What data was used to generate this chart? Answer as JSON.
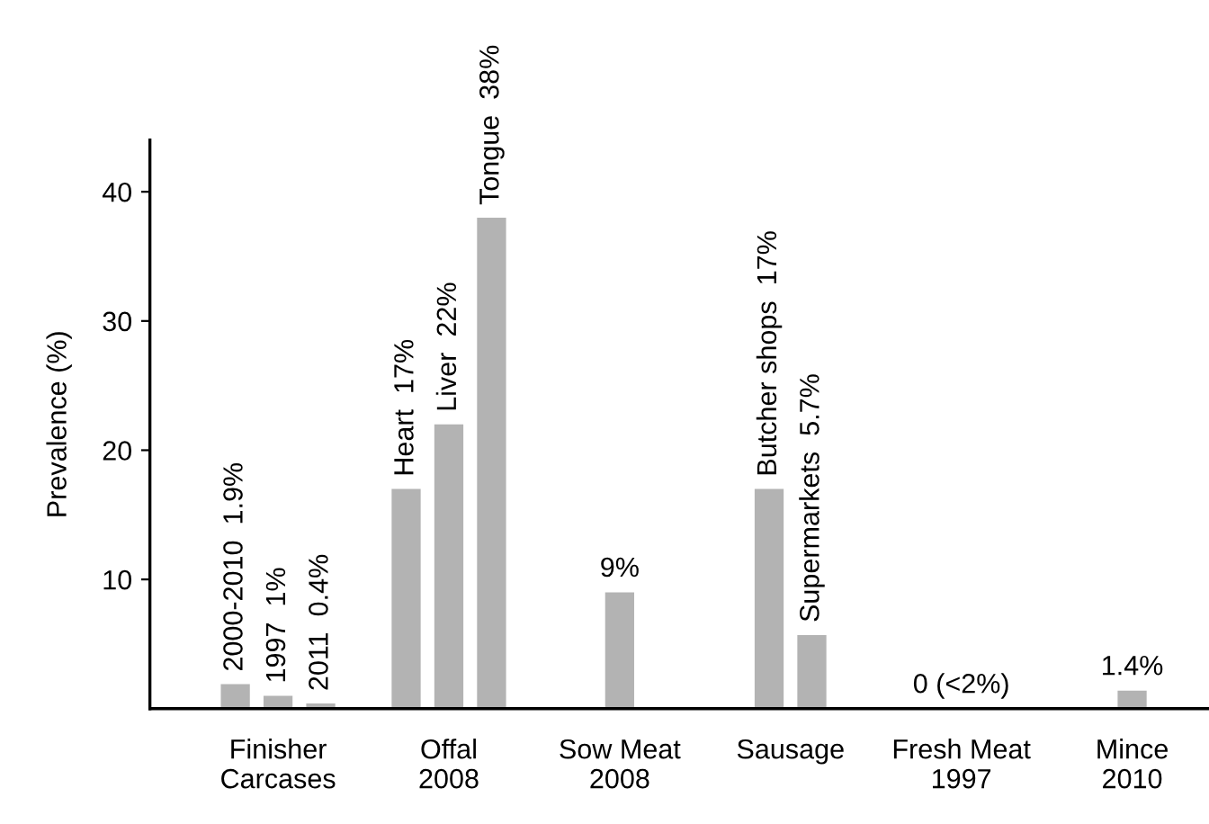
{
  "chart_data": {
    "type": "bar",
    "ylabel": "Prevalence (%)",
    "categories": [
      "Finisher\nCarcases",
      "Offal\n2008",
      "Sow Meat\n2008",
      "Sausage",
      "Fresh Meat\n1997",
      "Mince\n2010"
    ],
    "series": [
      {
        "color": "#b3b3b3",
        "values": [
          1.9,
          17,
          9,
          17,
          0,
          1.4
        ],
        "value_labels": [
          "2000-2010  1.9%",
          "Heart  17%",
          "9%",
          "Butcher shops  17%",
          "0 (<2%)",
          "1.4%"
        ]
      },
      {
        "color": "#b3b3b3",
        "values": [
          1,
          22,
          null,
          5.7,
          null,
          null
        ],
        "value_labels": [
          "1997  1%",
          "Liver  22%",
          null,
          "Supermarkets  5.7%",
          null,
          null
        ]
      },
      {
        "color": "#b3b3b3",
        "values": [
          0.4,
          38,
          null,
          null,
          null,
          null
        ],
        "value_labels": [
          "2011  0.4%",
          "Tongue  38%",
          null,
          null,
          null,
          null
        ]
      }
    ],
    "ylim": [
      0,
      44
    ],
    "yticks": [
      10,
      20,
      30,
      40
    ],
    "grid": false,
    "legend": false
  }
}
